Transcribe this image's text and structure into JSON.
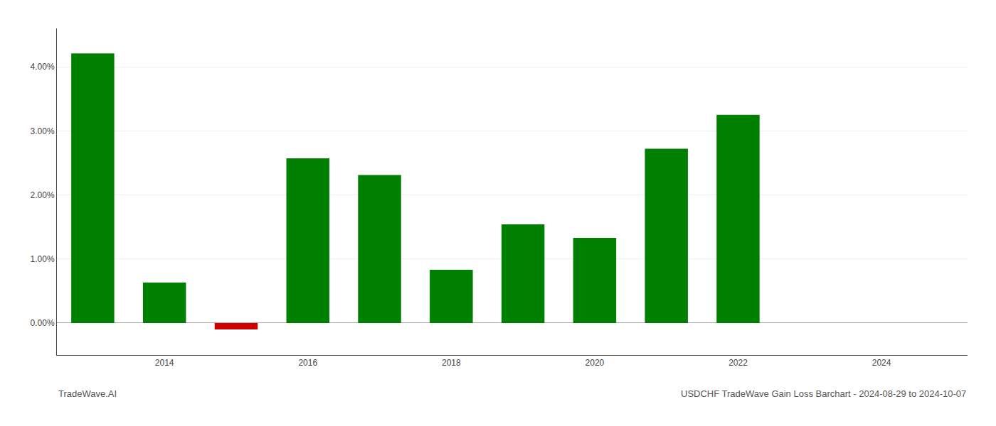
{
  "chart_data": {
    "type": "bar",
    "x": [
      2013,
      2014,
      2015,
      2016,
      2017,
      2018,
      2019,
      2020,
      2021,
      2022
    ],
    "values": [
      0.0421,
      0.0063,
      -0.001,
      0.0257,
      0.0231,
      0.0083,
      0.0154,
      0.0133,
      0.0272,
      0.0325
    ],
    "colors": [
      "#008000",
      "#008000",
      "#cc0000",
      "#008000",
      "#008000",
      "#008000",
      "#008000",
      "#008000",
      "#008000",
      "#008000"
    ],
    "xlim": [
      2012.5,
      2025.2
    ],
    "xticks": [
      2014,
      2016,
      2018,
      2020,
      2022,
      2024
    ],
    "ylim": [
      -0.005,
      0.046
    ],
    "yticks": [
      {
        "value": 0.0,
        "label": "0.00%"
      },
      {
        "value": 0.01,
        "label": "1.00%"
      },
      {
        "value": 0.02,
        "label": "2.00%"
      },
      {
        "value": 0.03,
        "label": "3.00%"
      },
      {
        "value": 0.04,
        "label": "4.00%"
      }
    ],
    "grid": true,
    "annotations": [
      "TradeWave.AI",
      "USDCHF TradeWave Gain Loss Barchart - 2024-08-29 to 2024-10-07"
    ]
  }
}
